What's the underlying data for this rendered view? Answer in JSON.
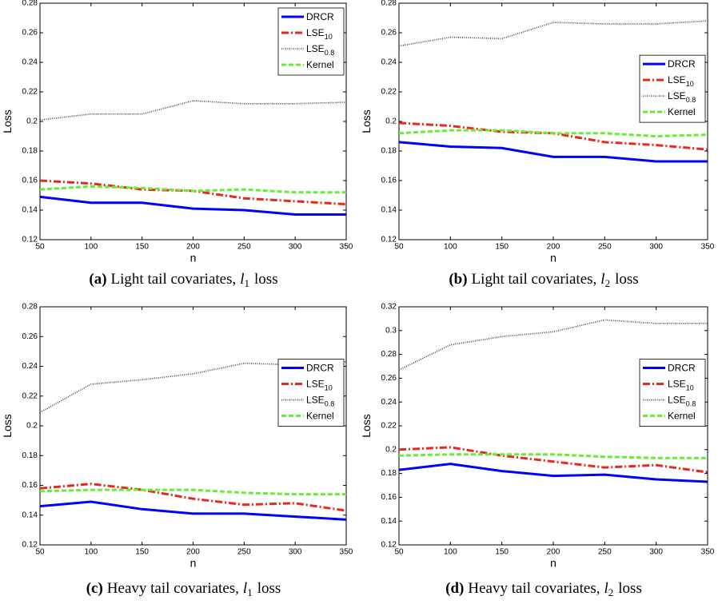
{
  "chart_data": [
    {
      "type": "line",
      "caption": {
        "label": "(a)",
        "text": "Light tail covariates,",
        "math": "l",
        "math_sub": "1",
        "suffix": "loss"
      },
      "xlabel": "n",
      "ylabel": "Loss",
      "x": [
        50,
        100,
        150,
        200,
        250,
        300,
        350
      ],
      "xlim": [
        50,
        350
      ],
      "xticks": [
        50,
        100,
        150,
        200,
        250,
        300,
        350
      ],
      "ylim": [
        0.12,
        0.28
      ],
      "yticks": [
        0.12,
        0.14,
        0.16,
        0.18,
        0.2,
        0.22,
        0.24,
        0.26,
        0.28
      ],
      "legend": "upper right",
      "series": [
        {
          "name": "DRCR",
          "color": "#0000ff",
          "linestyle": "solid",
          "values": [
            0.149,
            0.145,
            0.145,
            0.141,
            0.14,
            0.137,
            0.137
          ]
        },
        {
          "name": "LSE",
          "subscript": "10",
          "color": "#e8271d",
          "linestyle": "dashdot",
          "values": [
            0.16,
            0.158,
            0.154,
            0.153,
            0.148,
            0.146,
            0.144
          ]
        },
        {
          "name": "LSE",
          "subscript": "0.8",
          "color": "#444444",
          "linestyle": "dotted",
          "values": [
            0.201,
            0.205,
            0.205,
            0.214,
            0.212,
            0.212,
            0.213
          ]
        },
        {
          "name": "Kernel",
          "color": "#66ee33",
          "linestyle": "dashed",
          "values": [
            0.154,
            0.156,
            0.155,
            0.153,
            0.154,
            0.152,
            0.152
          ]
        }
      ]
    },
    {
      "type": "line",
      "caption": {
        "label": "(b)",
        "text": "Light tail covariates,",
        "math": "l",
        "math_sub": "2",
        "suffix": "loss"
      },
      "xlabel": "n",
      "ylabel": "Loss",
      "x": [
        50,
        100,
        150,
        200,
        250,
        300,
        350
      ],
      "xlim": [
        50,
        350
      ],
      "xticks": [
        50,
        100,
        150,
        200,
        250,
        300,
        350
      ],
      "ylim": [
        0.12,
        0.28
      ],
      "yticks": [
        0.12,
        0.14,
        0.16,
        0.18,
        0.2,
        0.22,
        0.24,
        0.26,
        0.28
      ],
      "legend": "center right",
      "series": [
        {
          "name": "DRCR",
          "color": "#0000ff",
          "linestyle": "solid",
          "values": [
            0.186,
            0.183,
            0.182,
            0.176,
            0.176,
            0.173,
            0.173
          ]
        },
        {
          "name": "LSE",
          "subscript": "10",
          "color": "#e8271d",
          "linestyle": "dashdot",
          "values": [
            0.199,
            0.197,
            0.193,
            0.192,
            0.186,
            0.184,
            0.181
          ]
        },
        {
          "name": "LSE",
          "subscript": "0.8",
          "color": "#444444",
          "linestyle": "dotted",
          "values": [
            0.251,
            0.257,
            0.256,
            0.267,
            0.266,
            0.266,
            0.268
          ]
        },
        {
          "name": "Kernel",
          "color": "#66ee33",
          "linestyle": "dashed",
          "values": [
            0.192,
            0.194,
            0.194,
            0.192,
            0.192,
            0.19,
            0.191
          ]
        }
      ]
    },
    {
      "type": "line",
      "caption": {
        "label": "(c)",
        "text": "Heavy tail covariates,",
        "math": "l",
        "math_sub": "1",
        "suffix": "loss"
      },
      "xlabel": "n",
      "ylabel": "Loss",
      "x": [
        50,
        100,
        150,
        200,
        250,
        300,
        350
      ],
      "xlim": [
        50,
        350
      ],
      "xticks": [
        50,
        100,
        150,
        200,
        250,
        300,
        350
      ],
      "ylim": [
        0.12,
        0.28
      ],
      "yticks": [
        0.12,
        0.14,
        0.16,
        0.18,
        0.2,
        0.22,
        0.24,
        0.26,
        0.28
      ],
      "legend": "center right",
      "series": [
        {
          "name": "DRCR",
          "color": "#0000ff",
          "linestyle": "solid",
          "values": [
            0.146,
            0.149,
            0.144,
            0.141,
            0.141,
            0.139,
            0.137
          ]
        },
        {
          "name": "LSE",
          "subscript": "10",
          "color": "#e8271d",
          "linestyle": "dashdot",
          "values": [
            0.158,
            0.161,
            0.157,
            0.151,
            0.147,
            0.148,
            0.143
          ]
        },
        {
          "name": "LSE",
          "subscript": "0.8",
          "color": "#444444",
          "linestyle": "dotted",
          "values": [
            0.209,
            0.228,
            0.231,
            0.235,
            0.242,
            0.241,
            0.243
          ]
        },
        {
          "name": "Kernel",
          "color": "#66ee33",
          "linestyle": "dashed",
          "values": [
            0.156,
            0.157,
            0.157,
            0.157,
            0.155,
            0.154,
            0.154
          ]
        }
      ]
    },
    {
      "type": "line",
      "caption": {
        "label": "(d)",
        "text": "Heavy tail covariates,",
        "math": "l",
        "math_sub": "2",
        "suffix": "loss"
      },
      "xlabel": "n",
      "ylabel": "Loss",
      "x": [
        50,
        100,
        150,
        200,
        250,
        300,
        350
      ],
      "xlim": [
        50,
        350
      ],
      "xticks": [
        50,
        100,
        150,
        200,
        250,
        300,
        350
      ],
      "ylim": [
        0.12,
        0.32
      ],
      "yticks": [
        0.12,
        0.14,
        0.16,
        0.18,
        0.2,
        0.22,
        0.24,
        0.26,
        0.28,
        0.3,
        0.32
      ],
      "legend": "center right",
      "series": [
        {
          "name": "DRCR",
          "color": "#0000ff",
          "linestyle": "solid",
          "values": [
            0.183,
            0.188,
            0.182,
            0.178,
            0.179,
            0.175,
            0.173
          ]
        },
        {
          "name": "LSE",
          "subscript": "10",
          "color": "#e8271d",
          "linestyle": "dashdot",
          "values": [
            0.2,
            0.202,
            0.195,
            0.19,
            0.185,
            0.187,
            0.181
          ]
        },
        {
          "name": "LSE",
          "subscript": "0.8",
          "color": "#444444",
          "linestyle": "dotted",
          "values": [
            0.267,
            0.288,
            0.295,
            0.299,
            0.309,
            0.306,
            0.306
          ]
        },
        {
          "name": "Kernel",
          "color": "#66ee33",
          "linestyle": "dashed",
          "values": [
            0.195,
            0.196,
            0.196,
            0.196,
            0.194,
            0.193,
            0.193
          ]
        }
      ]
    }
  ]
}
